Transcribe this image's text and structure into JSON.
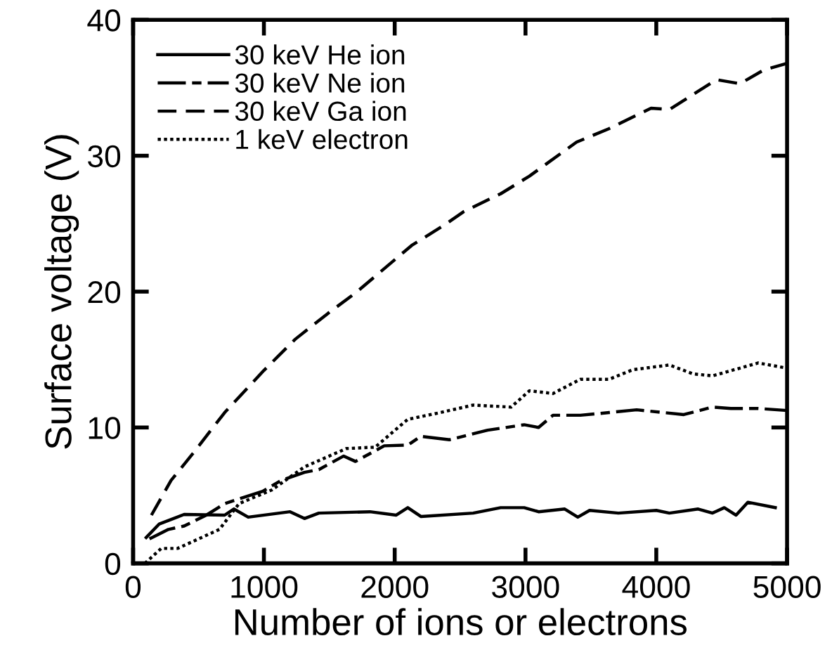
{
  "chart_data": {
    "type": "line",
    "xlabel": "Number of ions or electrons",
    "ylabel": "Surface voltage (V)",
    "xlim": [
      0,
      5000
    ],
    "ylim": [
      0,
      40
    ],
    "xticks": [
      0,
      1000,
      2000,
      3000,
      4000,
      5000
    ],
    "yticks": [
      0,
      10,
      20,
      30,
      40
    ],
    "grid": false,
    "legend": "top left",
    "marker": "none",
    "series": [
      {
        "name": "30 keV He ion",
        "color": "#000000",
        "line_style": "solid",
        "x": [
          100,
          200,
          390,
          700,
          770,
          880,
          1200,
          1310,
          1420,
          1810,
          2010,
          2100,
          2200,
          2600,
          2810,
          2990,
          3100,
          3300,
          3400,
          3490,
          3710,
          4000,
          4100,
          4320,
          4430,
          4520,
          4610,
          4700,
          4910
        ],
        "values": [
          1.9,
          2.9,
          3.6,
          3.55,
          4.0,
          3.4,
          3.8,
          3.3,
          3.7,
          3.8,
          3.55,
          4.1,
          3.45,
          3.7,
          4.1,
          4.1,
          3.8,
          4.0,
          3.4,
          3.9,
          3.7,
          3.9,
          3.7,
          4.0,
          3.7,
          4.1,
          3.55,
          4.5,
          4.1
        ]
      },
      {
        "name": "30 keV Ne ion",
        "color": "#000000",
        "line_style": "dashdot",
        "x": [
          125,
          270,
          390,
          560,
          700,
          990,
          1130,
          1310,
          1420,
          1610,
          1700,
          1920,
          2100,
          2200,
          2420,
          2710,
          2990,
          3100,
          3210,
          3420,
          3640,
          3850,
          4210,
          4430,
          4570,
          4780,
          5000
        ],
        "values": [
          1.8,
          2.5,
          2.75,
          3.55,
          4.4,
          5.3,
          6.1,
          6.7,
          6.9,
          7.9,
          7.5,
          8.65,
          8.7,
          9.35,
          9.1,
          9.8,
          10.2,
          10.0,
          10.9,
          10.9,
          11.1,
          11.3,
          10.95,
          11.5,
          11.4,
          11.4,
          11.25
        ]
      },
      {
        "name": "30 keV Ga ion",
        "color": "#000000",
        "line_style": "dashed",
        "x": [
          140,
          290,
          450,
          700,
          1000,
          1240,
          1490,
          1700,
          2130,
          2380,
          2530,
          2810,
          3030,
          3390,
          3640,
          3960,
          4100,
          4460,
          4640,
          4820,
          5000
        ],
        "values": [
          3.55,
          6.1,
          8.0,
          11.1,
          14.2,
          16.5,
          18.4,
          19.9,
          23.4,
          24.9,
          25.9,
          27.2,
          28.5,
          31.0,
          32.0,
          33.5,
          33.4,
          35.6,
          35.3,
          36.3,
          36.8
        ]
      },
      {
        "name": "1 keV electron",
        "color": "#000000",
        "line_style": "dotted",
        "x": [
          90,
          215,
          340,
          660,
          810,
          1060,
          1310,
          1630,
          1850,
          2100,
          2350,
          2600,
          2890,
          3030,
          3210,
          3420,
          3640,
          3820,
          4100,
          4280,
          4430,
          4780,
          4980
        ],
        "values": [
          0,
          1.1,
          1.1,
          2.5,
          4.4,
          5.4,
          7.1,
          8.45,
          8.55,
          10.6,
          11.1,
          11.65,
          11.5,
          12.7,
          12.5,
          13.55,
          13.55,
          14.25,
          14.6,
          13.95,
          13.8,
          14.75,
          14.4
        ]
      }
    ]
  }
}
